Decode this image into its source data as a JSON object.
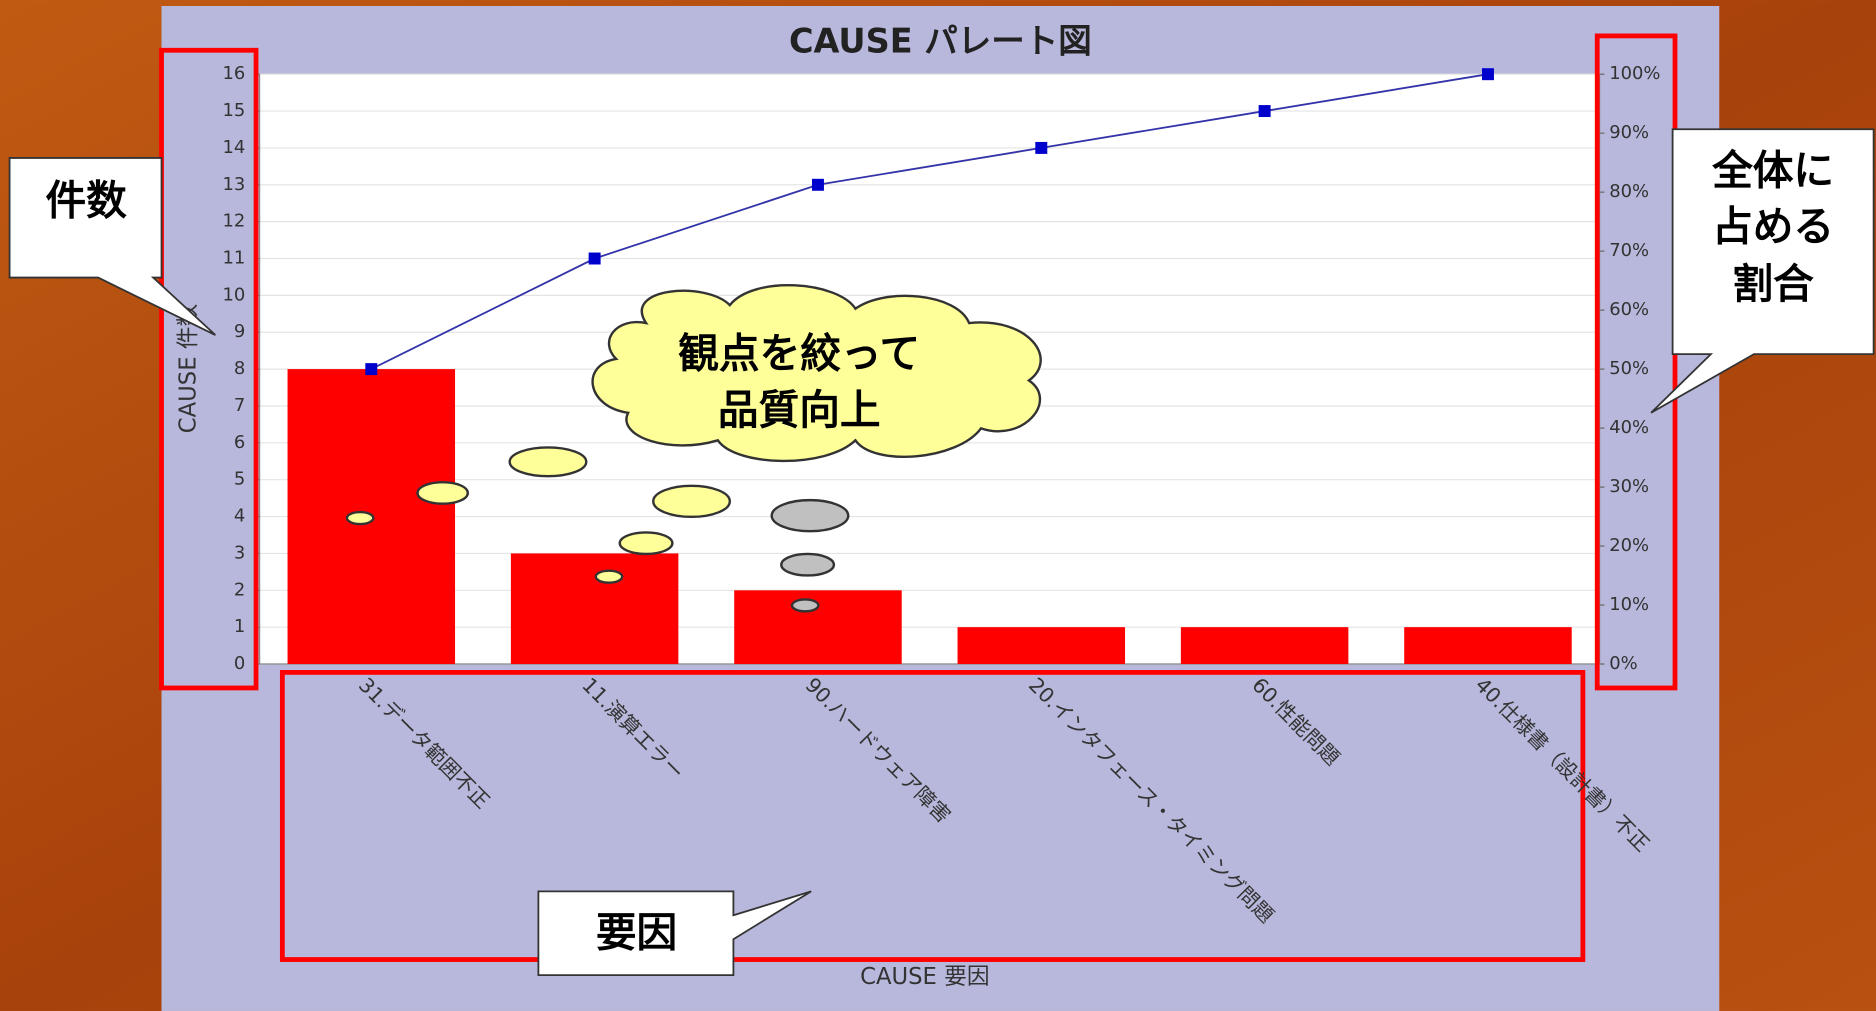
{
  "chart_data": {
    "type": "bar",
    "title": "CAUSE パレート図",
    "xlabel": "CAUSE 要因",
    "ylabel": "CAUSE 件数",
    "categories": [
      "31.データ範囲不正",
      "11.演算エラー",
      "90.ハードウェア障害",
      "20.インタフェース・タイミング問題",
      "60.性能問題",
      "40.仕様書（設計書）不正"
    ],
    "series": [
      {
        "type": "bar",
        "color": "#ff0000",
        "values": [
          8,
          3,
          2,
          1,
          1,
          1
        ]
      },
      {
        "type": "line",
        "color": "#3333aa",
        "marker_color": "#0000cc",
        "axis": "y2",
        "values": [
          50,
          68.75,
          81.25,
          87.5,
          93.75,
          100
        ]
      }
    ],
    "ylim": [
      0,
      16
    ],
    "yticks": [
      0,
      1,
      2,
      3,
      4,
      5,
      6,
      7,
      8,
      9,
      10,
      11,
      12,
      13,
      14,
      15,
      16
    ],
    "y2lim": [
      0,
      100
    ],
    "y2ticks": [
      {
        "value": 0,
        "label": "0%"
      },
      {
        "value": 10,
        "label": "10%"
      },
      {
        "value": 20,
        "label": "20%"
      },
      {
        "value": 30,
        "label": "30%"
      },
      {
        "value": 40,
        "label": "40%"
      },
      {
        "value": 50,
        "label": "50%"
      },
      {
        "value": 60,
        "label": "60%"
      },
      {
        "value": 70,
        "label": "70%"
      },
      {
        "value": 80,
        "label": "80%"
      },
      {
        "value": 90,
        "label": "90%"
      },
      {
        "value": 100,
        "label": "100%"
      }
    ],
    "grid": true,
    "annotations": {
      "count_callout": "件数",
      "ratio_callout": [
        "全体に",
        "占める",
        "割合"
      ],
      "factor_callout": "要因",
      "cloud": [
        "観点を絞って",
        "品質向上"
      ]
    }
  }
}
